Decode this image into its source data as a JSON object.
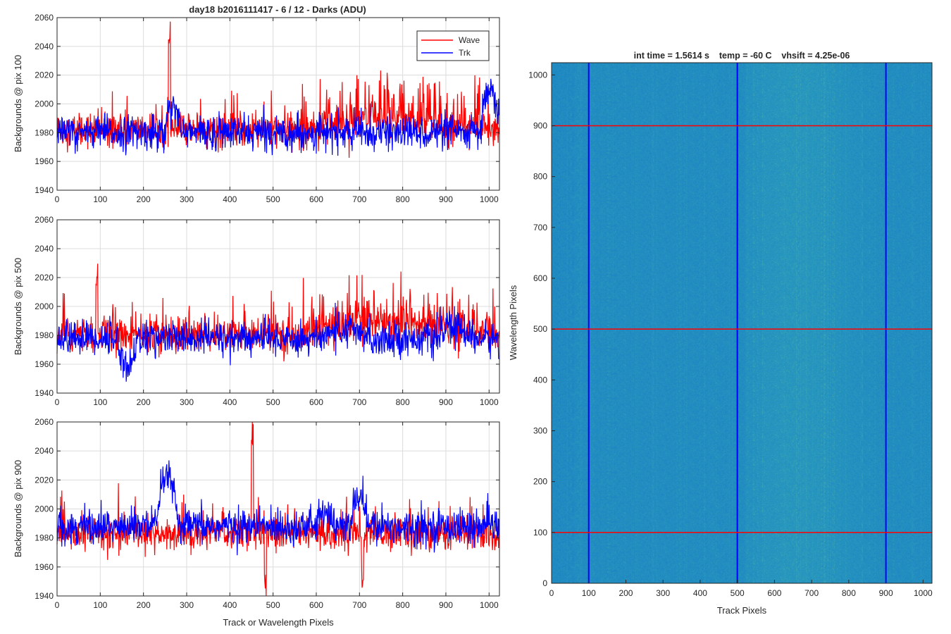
{
  "figure": {
    "main_title": "day18 b2016111417 - 6 / 12 - Darks (ADU)",
    "image_title": "int time = 1.5614 s    temp = -60 C    vhsift = 4.25e-06"
  },
  "chart_data": [
    {
      "type": "line",
      "ylabel": "Backgrounds @ pix 100",
      "xlabel": "",
      "xlim": [
        0,
        1024
      ],
      "ylim": [
        1940,
        2060
      ],
      "xticks": [
        "0",
        "100",
        "200",
        "300",
        "400",
        "500",
        "600",
        "700",
        "800",
        "900",
        "1000"
      ],
      "yticks": [
        "1940",
        "1960",
        "1980",
        "2000",
        "2020",
        "2040",
        "2060"
      ],
      "grid": true,
      "legend": {
        "placement": "top-right",
        "entries": [
          "Wave",
          "Trk"
        ]
      },
      "series": [
        {
          "name": "Wave",
          "color": "#ff0000",
          "baseline": 1982,
          "noise": 6,
          "spike_rate": 0.06,
          "spike_amp": 22,
          "features": [
            {
              "x": [
                560,
                1000
              ],
              "dy": 6,
              "spike_rate": 0.22,
              "spike_amp": 30
            },
            {
              "x": [
                258,
                262
              ],
              "dy": 60
            }
          ]
        },
        {
          "name": "Trk",
          "color": "#0000ff",
          "baseline": 1980,
          "noise": 6,
          "spike_rate": 0.01,
          "spike_amp": 10,
          "features": [
            {
              "x": [
                250,
                285
              ],
              "dy": 22
            },
            {
              "x": [
                980,
                1024
              ],
              "dy": 28
            }
          ]
        }
      ]
    },
    {
      "type": "line",
      "ylabel": "Backgrounds @ pix 500",
      "xlabel": "",
      "xlim": [
        0,
        1024
      ],
      "ylim": [
        1940,
        2060
      ],
      "xticks": [
        "0",
        "100",
        "200",
        "300",
        "400",
        "500",
        "600",
        "700",
        "800",
        "900",
        "1000"
      ],
      "yticks": [
        "1940",
        "1960",
        "1980",
        "2000",
        "2020",
        "2040",
        "2060"
      ],
      "grid": true,
      "series": [
        {
          "name": "Wave",
          "color": "#ff0000",
          "baseline": 1980,
          "noise": 6,
          "spike_rate": 0.08,
          "spike_amp": 25,
          "features": [
            {
              "x": [
                560,
                1000
              ],
              "dy": 8,
              "spike_rate": 0.2,
              "spike_amp": 30
            },
            {
              "x": [
                90,
                94
              ],
              "dy": 40
            }
          ]
        },
        {
          "name": "Trk",
          "color": "#0000ff",
          "baseline": 1978,
          "noise": 6,
          "spike_rate": 0.01,
          "spike_amp": 8,
          "features": [
            {
              "x": [
                140,
                185
              ],
              "dy": -20
            },
            {
              "x": [
                600,
                720
              ],
              "dy": 5
            },
            {
              "x": [
                880,
                960
              ],
              "dy": 8
            }
          ]
        }
      ]
    },
    {
      "type": "line",
      "ylabel": "Backgrounds @ pix 900",
      "xlabel": "Track or Wavelength Pixels",
      "xlim": [
        0,
        1024
      ],
      "ylim": [
        1940,
        2060
      ],
      "xticks": [
        "0",
        "100",
        "200",
        "300",
        "400",
        "500",
        "600",
        "700",
        "800",
        "900",
        "1000"
      ],
      "yticks": [
        "1940",
        "1960",
        "1980",
        "2000",
        "2020",
        "2040",
        "2060"
      ],
      "grid": true,
      "series": [
        {
          "name": "Wave",
          "color": "#ff0000",
          "baseline": 1983,
          "noise": 6,
          "spike_rate": 0.07,
          "spike_amp": 22,
          "features": [
            {
              "x": [
                450,
                454
              ],
              "dy": 65
            },
            {
              "x": [
                480,
                484
              ],
              "dy": -35
            },
            {
              "x": [
                705,
                709
              ],
              "dy": -32
            }
          ]
        },
        {
          "name": "Trk",
          "color": "#0000ff",
          "baseline": 1988,
          "noise": 6,
          "spike_rate": 0.02,
          "spike_amp": 12,
          "features": [
            {
              "x": [
                230,
                280
              ],
              "dy": 35
            },
            {
              "x": [
                680,
                720
              ],
              "dy": 22
            },
            {
              "x": [
                600,
                640
              ],
              "dy": 12
            }
          ]
        }
      ]
    },
    {
      "type": "heatmap",
      "title": "int time = 1.5614 s    temp = -60 C    vhsift = 4.25e-06",
      "xlabel": "Track Pixels",
      "ylabel": "Wavelength Pixels",
      "xlim": [
        0,
        1024
      ],
      "ylim": [
        0,
        1024
      ],
      "xticks": [
        "0",
        "100",
        "200",
        "300",
        "400",
        "500",
        "600",
        "700",
        "800",
        "900",
        "1000"
      ],
      "yticks": [
        "0",
        "100",
        "200",
        "300",
        "400",
        "500",
        "600",
        "700",
        "800",
        "900",
        "1000"
      ],
      "colormap": [
        "#1a7fc4",
        "#2a9bbd",
        "#7ec28a"
      ],
      "vertical_markers": {
        "color": "#0000ff",
        "x": [
          100,
          500,
          900
        ]
      },
      "horizontal_markers": {
        "color": "#ff0000",
        "y": [
          100,
          500,
          900
        ]
      }
    }
  ]
}
